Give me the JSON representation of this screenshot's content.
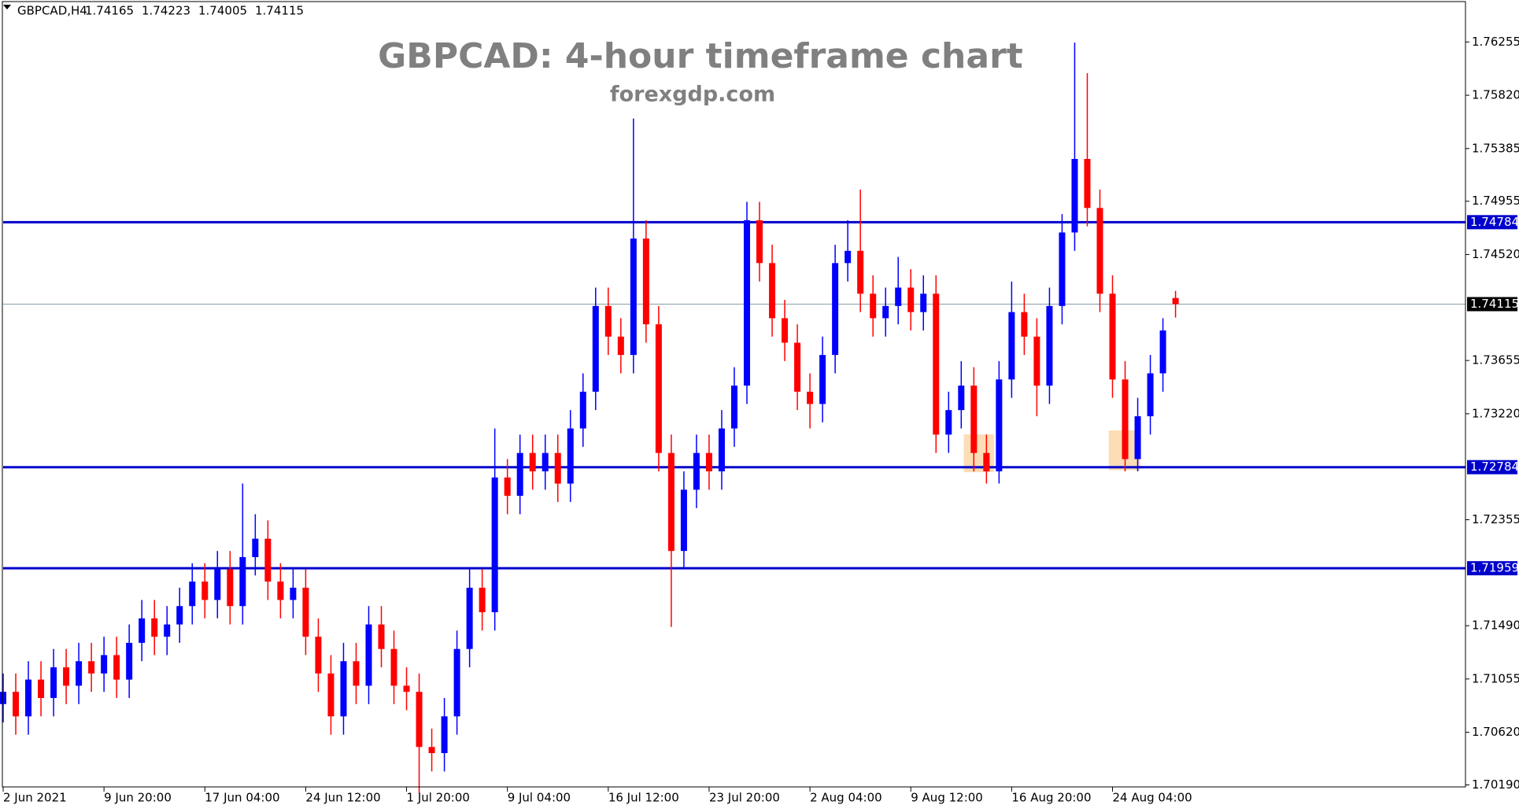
{
  "chart_data": {
    "type": "candlestick",
    "symbol": "GBPCAD,H4",
    "title": "GBPCAD: 4-hour timeframe chart",
    "subtitle": "forexgdp.com",
    "up_color": "#0000ff",
    "down_color": "#ff0000",
    "open": [
      1.7085,
      1.7095,
      1.7075,
      1.7105,
      1.709,
      1.7115,
      1.71,
      1.712,
      1.711,
      1.7125,
      1.7105,
      1.7135,
      1.7155,
      1.714,
      1.715,
      1.7165,
      1.7185,
      1.717,
      1.7195,
      1.7165,
      1.7205,
      1.722,
      1.7185,
      1.717,
      1.718,
      1.714,
      1.711,
      1.7075,
      1.712,
      1.71,
      1.715,
      1.713,
      1.71,
      1.7095,
      1.705,
      1.7045,
      1.7075,
      1.713,
      1.718,
      1.716,
      1.727,
      1.7255,
      1.729,
      1.7275,
      1.729,
      1.7265,
      1.731,
      1.734,
      1.741,
      1.7385,
      1.737,
      1.7465,
      1.7395,
      1.729,
      1.721,
      1.726,
      1.729,
      1.7275,
      1.731,
      1.7345,
      1.748,
      1.7445,
      1.74,
      1.738,
      1.734,
      1.733,
      1.737,
      1.7445,
      1.7455,
      1.742,
      1.74,
      1.741,
      1.7425,
      1.7405,
      1.742,
      1.7305,
      1.7325,
      1.7345,
      1.729,
      1.7275,
      1.735,
      1.7405,
      1.7385,
      1.7345,
      1.741,
      1.747,
      1.753,
      1.749,
      1.742,
      1.735,
      1.7285,
      1.732,
      1.7355,
      1.74165
    ],
    "high": [
      1.711,
      1.711,
      1.712,
      1.712,
      1.713,
      1.713,
      1.7135,
      1.7135,
      1.714,
      1.714,
      1.715,
      1.717,
      1.717,
      1.7165,
      1.718,
      1.72,
      1.72,
      1.721,
      1.721,
      1.7265,
      1.724,
      1.7235,
      1.72,
      1.7195,
      1.7195,
      1.7155,
      1.7125,
      1.7135,
      1.7135,
      1.7165,
      1.7165,
      1.7145,
      1.7115,
      1.711,
      1.7065,
      1.709,
      1.7145,
      1.7195,
      1.7195,
      1.731,
      1.7285,
      1.7305,
      1.7305,
      1.7305,
      1.7305,
      1.7325,
      1.7355,
      1.7425,
      1.7425,
      1.74,
      1.7563,
      1.748,
      1.741,
      1.7305,
      1.7275,
      1.7305,
      1.7305,
      1.7325,
      1.736,
      1.7495,
      1.7495,
      1.746,
      1.7415,
      1.7395,
      1.7355,
      1.7385,
      1.746,
      1.748,
      1.7505,
      1.7435,
      1.7425,
      1.745,
      1.744,
      1.7435,
      1.7435,
      1.734,
      1.7365,
      1.736,
      1.7305,
      1.7365,
      1.743,
      1.742,
      1.74,
      1.7425,
      1.7485,
      1.7625,
      1.76,
      1.7505,
      1.7435,
      1.7365,
      1.7335,
      1.737,
      1.74,
      1.74223
    ],
    "low": [
      1.707,
      1.706,
      1.706,
      1.7075,
      1.7075,
      1.7085,
      1.7085,
      1.7095,
      1.7095,
      1.709,
      1.709,
      1.712,
      1.7125,
      1.7125,
      1.7135,
      1.715,
      1.7155,
      1.7155,
      1.715,
      1.715,
      1.719,
      1.717,
      1.7155,
      1.7155,
      1.7125,
      1.7095,
      1.706,
      1.706,
      1.7085,
      1.7085,
      1.7115,
      1.7085,
      1.708,
      1.7012,
      1.703,
      1.703,
      1.706,
      1.7115,
      1.7145,
      1.7145,
      1.724,
      1.724,
      1.726,
      1.726,
      1.725,
      1.725,
      1.7295,
      1.7325,
      1.737,
      1.7355,
      1.7355,
      1.738,
      1.7275,
      1.7148,
      1.7195,
      1.7245,
      1.726,
      1.726,
      1.7295,
      1.733,
      1.743,
      1.7385,
      1.7365,
      1.7325,
      1.731,
      1.7315,
      1.7355,
      1.743,
      1.7405,
      1.7385,
      1.7385,
      1.7395,
      1.739,
      1.739,
      1.729,
      1.729,
      1.731,
      1.7275,
      1.7265,
      1.7265,
      1.7335,
      1.737,
      1.732,
      1.733,
      1.7395,
      1.7455,
      1.7475,
      1.7405,
      1.7335,
      1.7275,
      1.7275,
      1.7305,
      1.734,
      1.74005
    ],
    "close": [
      1.7095,
      1.7075,
      1.7105,
      1.709,
      1.7115,
      1.71,
      1.712,
      1.711,
      1.7125,
      1.7105,
      1.7135,
      1.7155,
      1.714,
      1.715,
      1.7165,
      1.7185,
      1.717,
      1.7195,
      1.7165,
      1.7205,
      1.722,
      1.7185,
      1.717,
      1.718,
      1.714,
      1.711,
      1.7075,
      1.712,
      1.71,
      1.715,
      1.713,
      1.71,
      1.7095,
      1.705,
      1.7045,
      1.7075,
      1.713,
      1.718,
      1.716,
      1.727,
      1.7255,
      1.729,
      1.7275,
      1.729,
      1.7265,
      1.731,
      1.734,
      1.741,
      1.7385,
      1.737,
      1.7465,
      1.7395,
      1.729,
      1.721,
      1.726,
      1.729,
      1.7275,
      1.731,
      1.7345,
      1.748,
      1.7445,
      1.74,
      1.738,
      1.734,
      1.733,
      1.737,
      1.7445,
      1.7455,
      1.742,
      1.74,
      1.741,
      1.7425,
      1.7405,
      1.742,
      1.7305,
      1.7325,
      1.7345,
      1.729,
      1.7275,
      1.735,
      1.7405,
      1.7385,
      1.7345,
      1.741,
      1.747,
      1.753,
      1.749,
      1.742,
      1.735,
      1.7285,
      1.732,
      1.7355,
      1.739,
      1.74115
    ],
    "xlim": [
      0,
      116
    ],
    "xticks": [
      {
        "value": 0,
        "label": "2 Jun 2021"
      },
      {
        "value": 8,
        "label": "9 Jun 20:00"
      },
      {
        "value": 16,
        "label": "17 Jun 04:00"
      },
      {
        "value": 24,
        "label": "24 Jun 12:00"
      },
      {
        "value": 32,
        "label": "1 Jul 20:00"
      },
      {
        "value": 40,
        "label": "9 Jul 04:00"
      },
      {
        "value": 48,
        "label": "16 Jul 12:00"
      },
      {
        "value": 56,
        "label": "23 Jul 20:00"
      },
      {
        "value": 64,
        "label": "2 Aug 04:00"
      },
      {
        "value": 72,
        "label": "9 Aug 12:00"
      },
      {
        "value": 80,
        "label": "16 Aug 20:00"
      },
      {
        "value": 88,
        "label": "24 Aug 04:00"
      }
    ],
    "ylim": [
      1.70174,
      1.76572
    ],
    "yticks": [
      1.76255,
      {
        "value": 1.7582,
        "label": "1.75820"
      },
      1.75385,
      1.74955,
      {
        "value": 1.7452,
        "label": "1.74520"
      },
      1.73655,
      {
        "value": 1.7322,
        "label": "1.73220"
      },
      1.72355,
      {
        "value": 1.7149,
        "label": "1.71490"
      },
      1.71055,
      {
        "value": 1.7062,
        "label": "1.70620"
      },
      {
        "value": 1.7019,
        "label": "1.70190"
      }
    ],
    "levels": [
      {
        "value": 1.74784,
        "color": "#0000cc"
      },
      {
        "value": 1.72784,
        "color": "#0000cc"
      },
      {
        "value": 1.71959,
        "color": "#0000cc"
      }
    ],
    "highlights": [
      {
        "x": [
          76.2,
          78.6
        ],
        "y": [
          1.72743,
          1.73052
        ],
        "color": "#fbd7a8"
      },
      {
        "x": [
          87.7,
          90.2
        ],
        "y": [
          1.72759,
          1.73084
        ],
        "color": "#fbd7a8"
      }
    ]
  }
}
